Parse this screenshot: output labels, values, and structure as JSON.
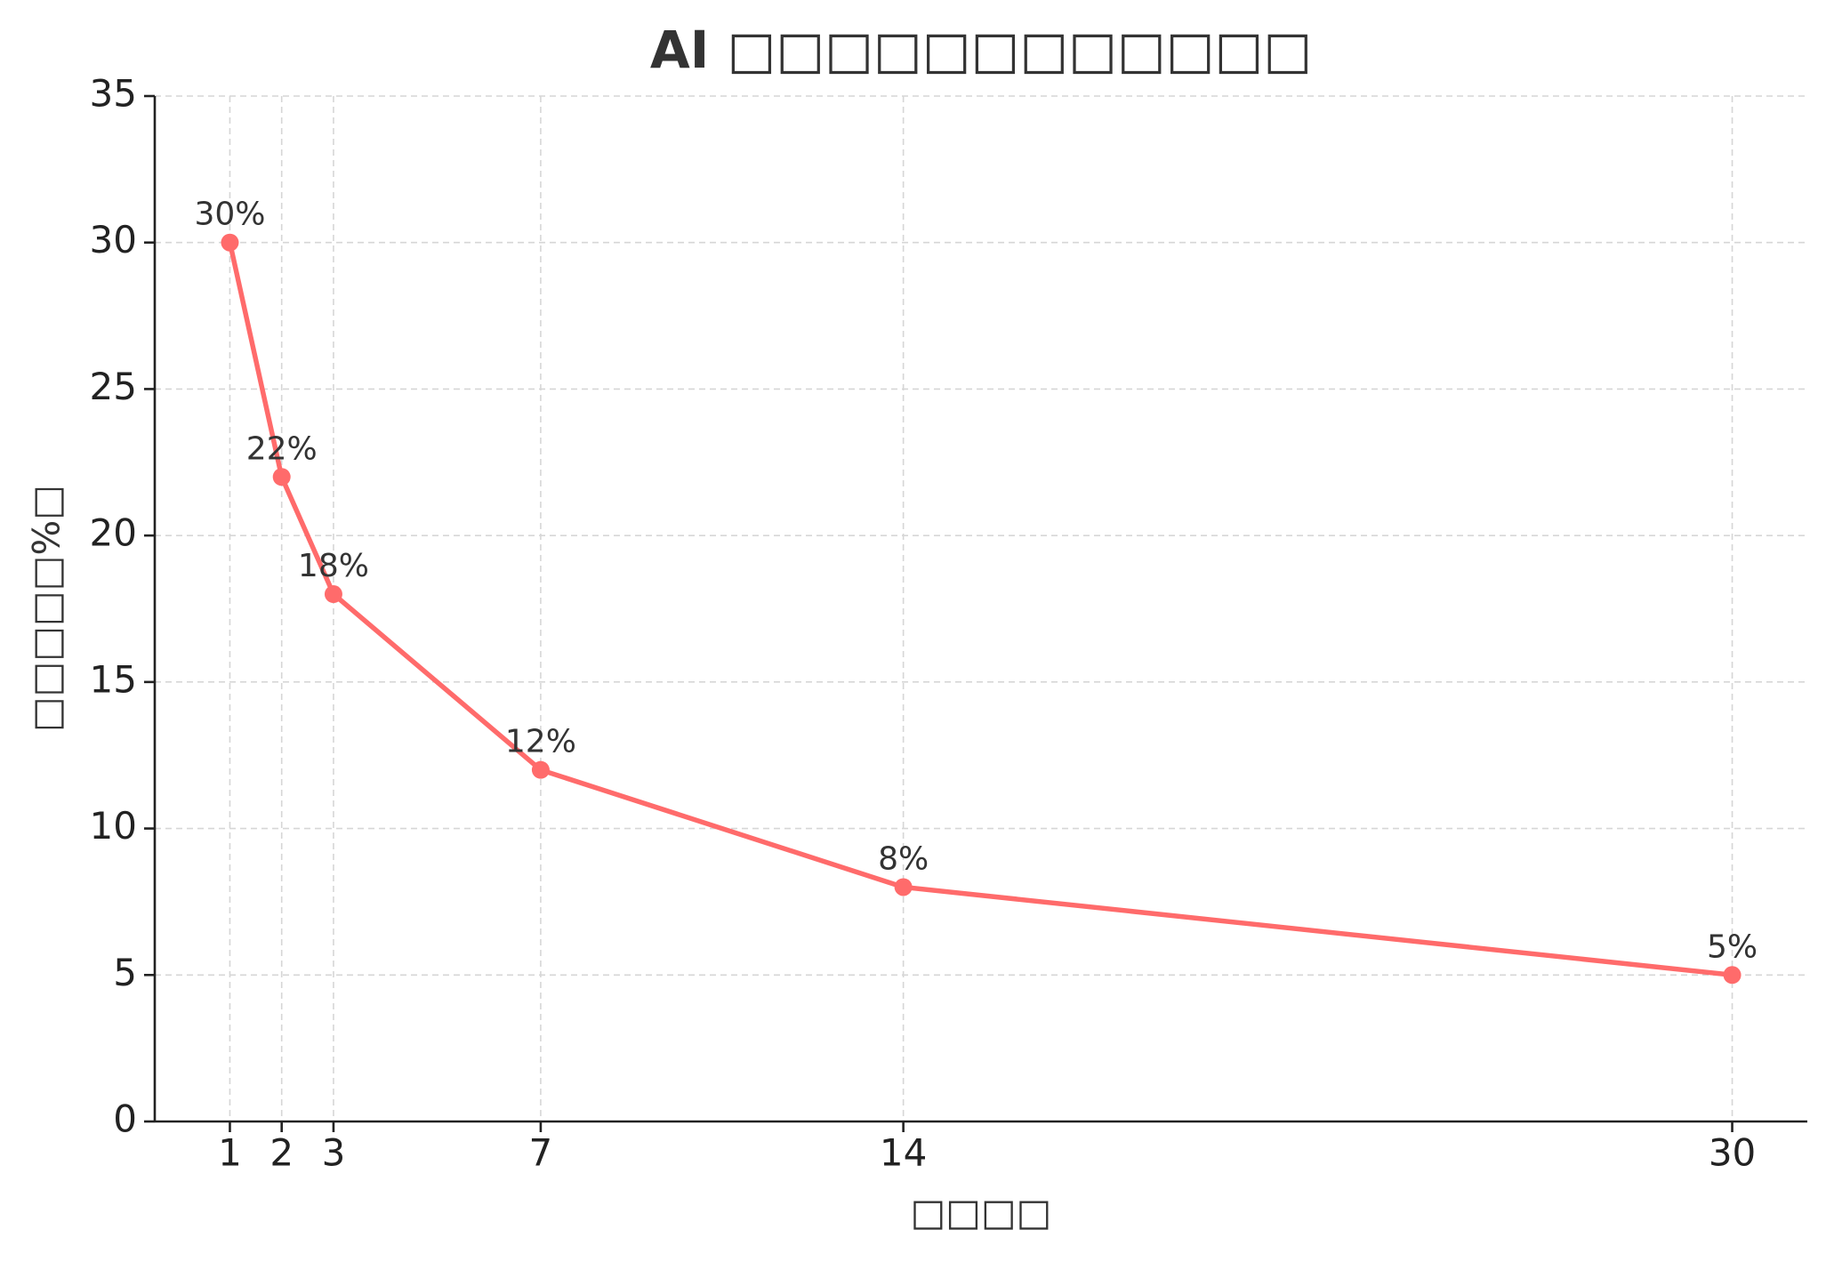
{
  "chart_data": {
    "type": "line",
    "title": "AI □□□□□□□□□□□□",
    "x_label": "□□□□",
    "y_label": "□□□□□%□",
    "x": [
      1,
      2,
      3,
      7,
      14,
      30
    ],
    "series": [
      {
        "color": "#ff6b6b",
        "values": [
          30,
          22,
          18,
          12,
          8,
          5
        ],
        "value_labels": [
          "30%",
          "22%",
          "18%",
          "12%",
          "8%",
          "5%"
        ]
      }
    ],
    "xlim": [
      -0.45,
      31.45
    ],
    "xticks": [
      1,
      2,
      3,
      7,
      14,
      30
    ],
    "ylim": [
      0,
      35
    ],
    "yticks": [
      0,
      5,
      10,
      15,
      20,
      25,
      30,
      35
    ],
    "grid": true
  }
}
